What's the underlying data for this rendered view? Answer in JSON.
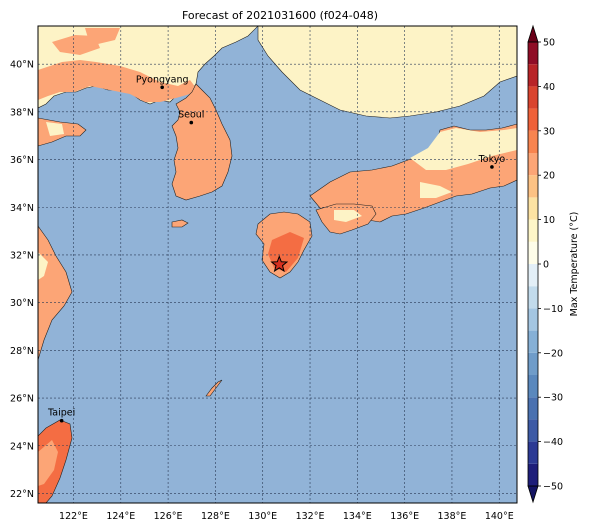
{
  "title": "Forecast of 2021031600 (f024-048)",
  "map": {
    "lon_range": [
      120.5,
      140.75
    ],
    "lat_range": [
      21.6,
      41.6
    ],
    "lon_ticks": [
      122,
      124,
      126,
      128,
      130,
      132,
      134,
      136,
      138,
      140
    ],
    "lon_labels": [
      "122°E",
      "124°E",
      "126°E",
      "128°E",
      "130°E",
      "132°E",
      "134°E",
      "136°E",
      "138°E",
      "140°E"
    ],
    "lat_ticks": [
      22,
      24,
      26,
      28,
      30,
      32,
      34,
      36,
      38,
      40
    ],
    "lat_labels": [
      "22°N",
      "24°N",
      "26°N",
      "28°N",
      "30°N",
      "32°N",
      "34°N",
      "36°N",
      "38°N",
      "40°N"
    ],
    "gridlines": true,
    "colors": {
      "ocean": "#91b3d7",
      "land_base": "#fdf3c6",
      "warm": "#fca576",
      "hot": "#f46d43",
      "grid": "#2a3a55"
    }
  },
  "cities": [
    {
      "name": "Pyongyang",
      "lon": 125.75,
      "lat": 39.03
    },
    {
      "name": "Seoul",
      "lon": 126.98,
      "lat": 37.55
    },
    {
      "name": "Tokyo",
      "lon": 139.69,
      "lat": 35.69
    },
    {
      "name": "Taipei",
      "lon": 121.5,
      "lat": 25.05
    }
  ],
  "marker": {
    "icon": "star-icon",
    "lon": 130.7,
    "lat": 31.6
  },
  "colorbar": {
    "label": "Max Temperature (°C)",
    "ticks": [
      -50,
      -40,
      -30,
      -20,
      -10,
      0,
      10,
      20,
      30,
      40,
      50
    ],
    "tick_labels": [
      "−50",
      "−40",
      "−30",
      "−20",
      "−10",
      "0",
      "10",
      "20",
      "30",
      "40",
      "50"
    ],
    "levels": [
      -50,
      -45,
      -40,
      -35,
      -30,
      -25,
      -20,
      -15,
      -10,
      -5,
      0,
      5,
      10,
      15,
      20,
      25,
      30,
      35,
      40,
      45,
      50
    ],
    "colors": [
      "#1e1e7a",
      "#2c3a94",
      "#3d5aa5",
      "#4a71b0",
      "#5a88bd",
      "#6f9cc9",
      "#86b0d6",
      "#a4c6e2",
      "#c2dbec",
      "#e3eff7",
      "#fefde9",
      "#fef6c8",
      "#fde3a3",
      "#fdc284",
      "#fca576",
      "#f8844f",
      "#ef6139",
      "#d9442e",
      "#b82427",
      "#8f0d26"
    ],
    "extend_low": "#141463",
    "extend_high": "#6a0018"
  }
}
